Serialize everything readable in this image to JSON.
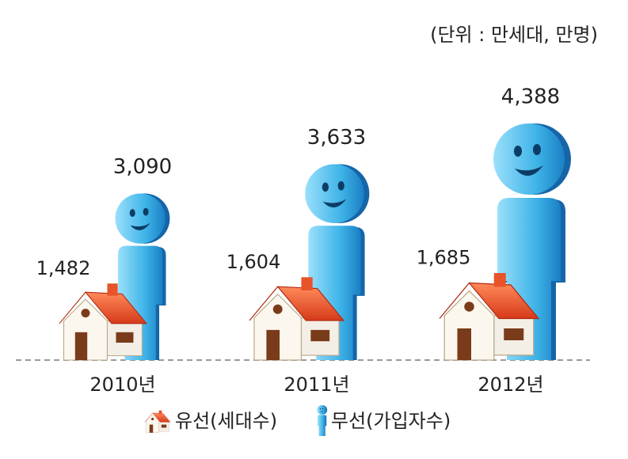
{
  "chart_data": {
    "type": "pictogram",
    "unit_note": "(단위 : 만세대, 만명)",
    "categories": [
      "2010년",
      "2011년",
      "2012년"
    ],
    "series": [
      {
        "name": "유선(세대수)",
        "color": "#e8532a",
        "values": [
          1482,
          1604,
          1685
        ],
        "value_labels": [
          "1,482",
          "1,604",
          "1,685"
        ]
      },
      {
        "name": "무선(가입자수)",
        "color": "#3fb4e8",
        "values": [
          3090,
          3633,
          4388
        ],
        "value_labels": [
          "3,090",
          "3,633",
          "4,388"
        ]
      }
    ]
  }
}
